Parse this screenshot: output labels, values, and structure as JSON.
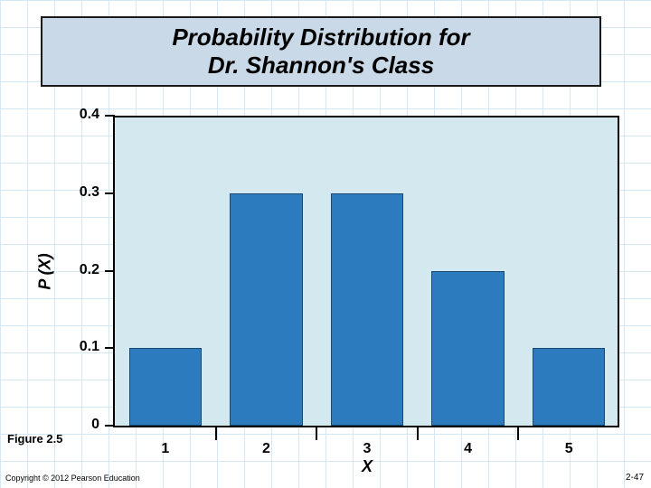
{
  "title": {
    "line1": "Probability Distribution for",
    "line2": "Dr. Shannon's Class",
    "fontsize": 26
  },
  "chart": {
    "type": "bar",
    "categories": [
      "1",
      "2",
      "3",
      "4",
      "5"
    ],
    "values": [
      0.1,
      0.3,
      0.3,
      0.2,
      0.1
    ],
    "bar_color": "#2c7bbf",
    "background_color": "#d4e8ef",
    "grid_color": "#d4e8f4",
    "ylabel": "P (X)",
    "xlabel": "X",
    "ylim": [
      0,
      0.4
    ],
    "ytick_step": 0.1,
    "yticks": [
      "0",
      "0.1",
      "0.2",
      "0.3",
      "0.4"
    ],
    "label_fontsize": 16,
    "axis_label_fontsize": 18,
    "bar_width": 0.72
  },
  "figure_label": "Figure 2.5",
  "figure_label_fontsize": 13,
  "copyright": "Copyright © 2012 Pearson Education",
  "page_num": "2-47"
}
